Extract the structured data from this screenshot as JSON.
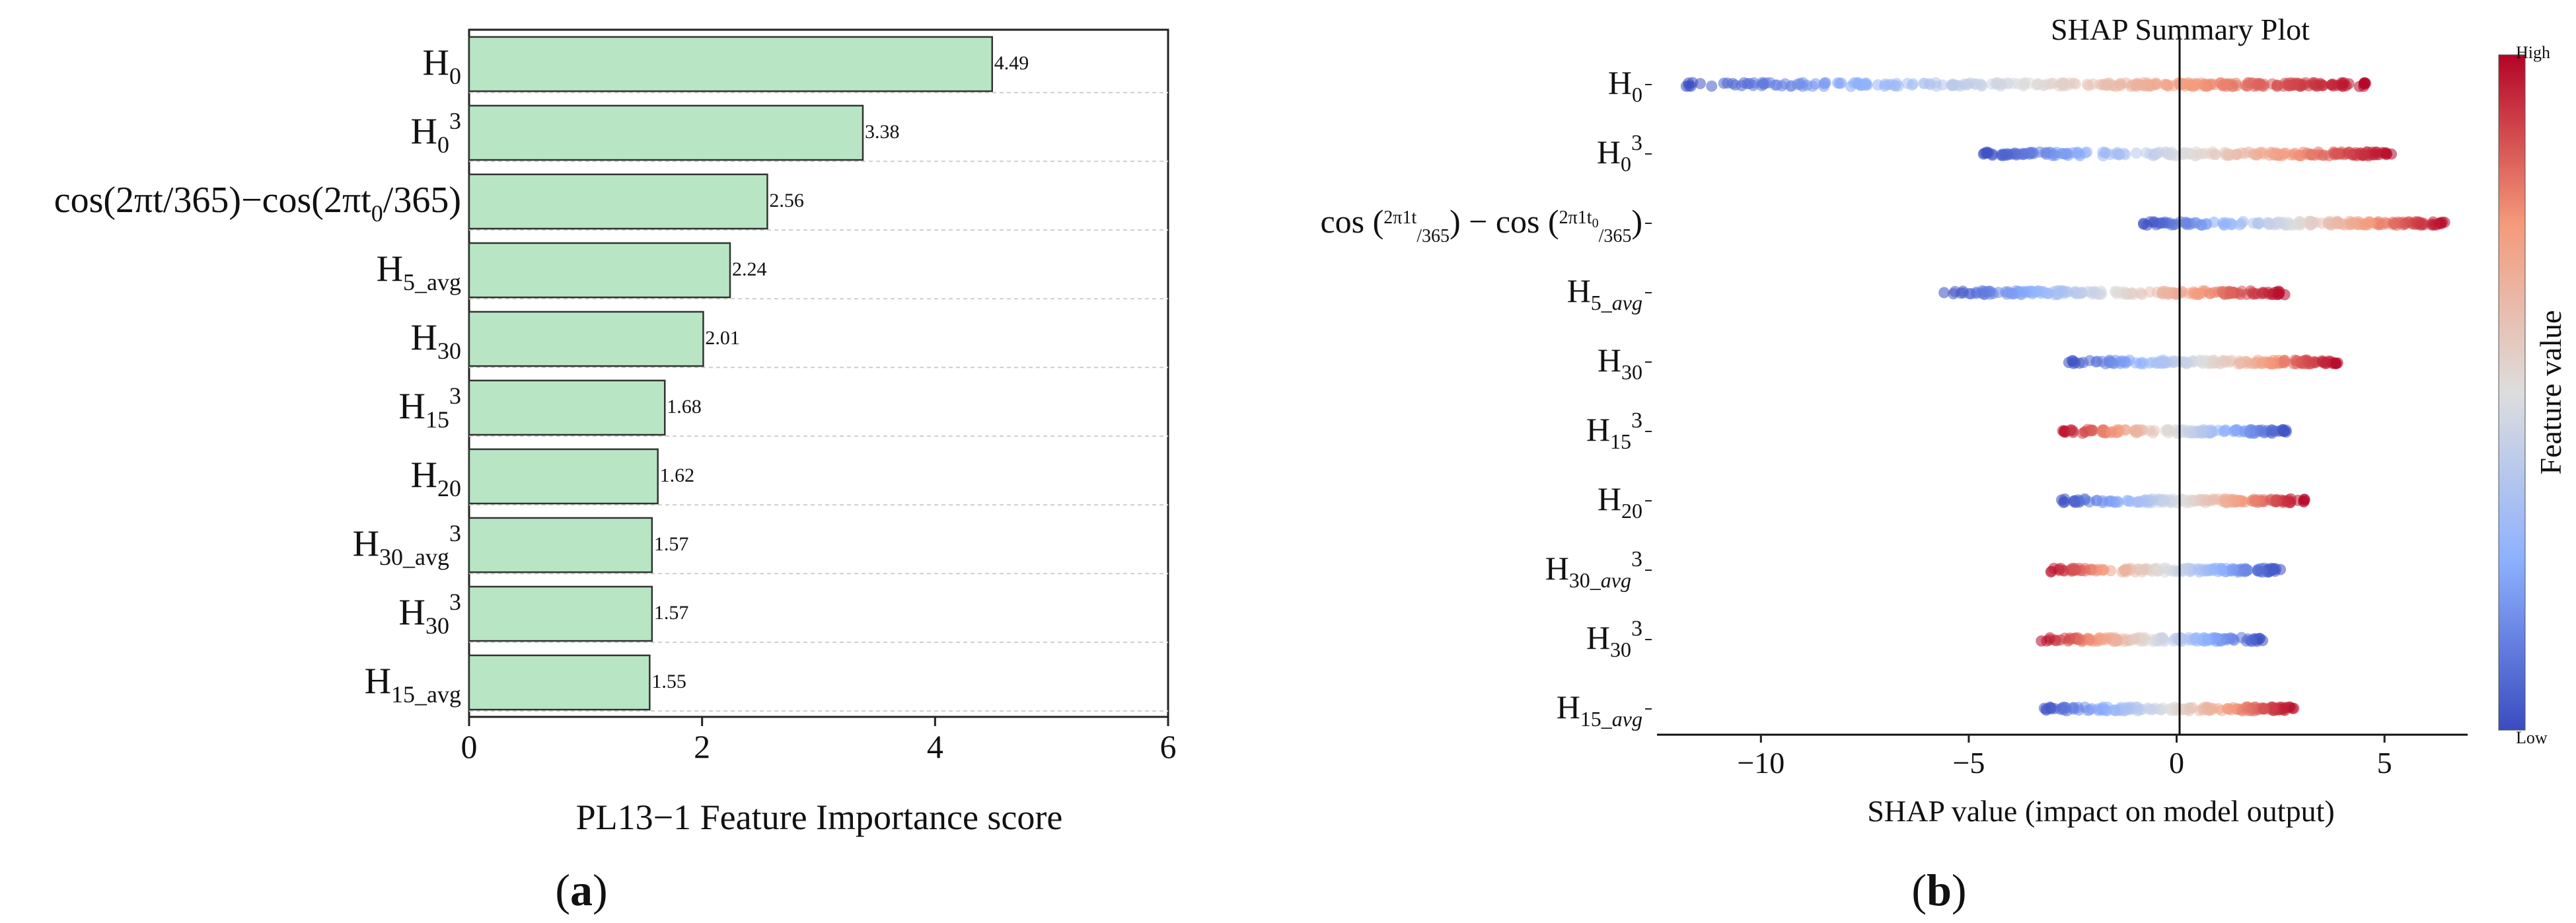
{
  "chart_data": [
    {
      "type": "bar",
      "orientation": "horizontal",
      "panel_label": "a",
      "title": "",
      "xlabel": "PL13−1 Feature Importance score",
      "ylabel": "",
      "categories": [
        {
          "base": "H",
          "sub": "0",
          "sup": ""
        },
        {
          "base": "H",
          "sub": "0",
          "sup": "3"
        },
        {
          "base": "cos(2πt/365)−cos(2πt",
          "sub": "0",
          "after": "/365)",
          "sup": ""
        },
        {
          "base": "H",
          "sub": "5_avg",
          "sup": ""
        },
        {
          "base": "H",
          "sub": "30",
          "sup": ""
        },
        {
          "base": "H",
          "sub": "15",
          "sup": "3"
        },
        {
          "base": "H",
          "sub": "20",
          "sup": ""
        },
        {
          "base": "H",
          "sub": "30_avg",
          "sup": "3"
        },
        {
          "base": "H",
          "sub": "30",
          "sup": "3"
        },
        {
          "base": "H",
          "sub": "15_avg",
          "sup": ""
        }
      ],
      "values": [
        4.49,
        3.38,
        2.56,
        2.24,
        2.01,
        1.68,
        1.62,
        1.57,
        1.57,
        1.55
      ],
      "value_labels": [
        "4.49",
        "3.38",
        "2.56",
        "2.24",
        "2.01",
        "1.68",
        "1.62",
        "1.57",
        "1.57",
        "1.55"
      ],
      "xlim": [
        0,
        6
      ],
      "xticks": [
        0,
        2,
        4,
        6
      ],
      "grid": "horizontal dashed",
      "bar_color": "#b8e6c4",
      "bar_edge_color": "#333333"
    },
    {
      "type": "scatter",
      "subtype": "beeswarm",
      "panel_label": "b",
      "title": "SHAP Summary Plot",
      "xlabel": "SHAP value (impact on model output)",
      "ylabel": "",
      "categories": [
        {
          "base": "H",
          "sub": "0",
          "sup": ""
        },
        {
          "base": "H",
          "sub": "0",
          "sup": "3"
        },
        {
          "base": "cos",
          "frac1_num": "2π1t",
          "frac1_den": "365",
          "frac2_num": "2π1t",
          "frac2_num_sub": "0",
          "frac2_den": "365"
        },
        {
          "base": "H",
          "sub": "5_avg",
          "sub_italic": "avg",
          "sup": ""
        },
        {
          "base": "H",
          "sub": "30",
          "sup": ""
        },
        {
          "base": "H",
          "sub": "15",
          "sup": "3"
        },
        {
          "base": "H",
          "sub": "20",
          "sup": ""
        },
        {
          "base": "H",
          "sub": "30_avg",
          "sub_italic": "avg",
          "sup": "3"
        },
        {
          "base": "H",
          "sub": "30",
          "sup": "3"
        },
        {
          "base": "H",
          "sub": "15_avg",
          "sub_italic": "avg",
          "sup": ""
        }
      ],
      "distributions": [
        {
          "min": -11.8,
          "max": 4.6,
          "low_side": "negative"
        },
        {
          "min": -4.7,
          "max": 5.2,
          "low_side": "negative"
        },
        {
          "min": -0.8,
          "max": 6.5,
          "low_side": "negative"
        },
        {
          "min": -5.6,
          "max": 2.6,
          "low_side": "negative"
        },
        {
          "min": -2.6,
          "max": 3.9,
          "low_side": "negative"
        },
        {
          "min": -2.9,
          "max": 2.7,
          "low_side": "positive"
        },
        {
          "min": -2.8,
          "max": 3.1,
          "low_side": "negative"
        },
        {
          "min": -3.2,
          "max": 2.5,
          "low_side": "positive"
        },
        {
          "min": -3.3,
          "max": 2.1,
          "low_side": "positive"
        },
        {
          "min": -3.3,
          "max": 2.9,
          "low_side": "negative"
        }
      ],
      "xlim": [
        -12.5,
        7
      ],
      "xticks": [
        -10,
        -5,
        0,
        5
      ],
      "xtick_labels": [
        "−10",
        "−5",
        "0",
        "5"
      ],
      "colorbar": {
        "label": "Feature value",
        "high_label": "High",
        "low_label": "Low",
        "colors": [
          "#3a4cc0",
          "#8db0fe",
          "#dddddd",
          "#f49a7b",
          "#b40426"
        ]
      }
    }
  ],
  "panel_labels": [
    {
      "text": "a"
    },
    {
      "text": "b"
    }
  ]
}
